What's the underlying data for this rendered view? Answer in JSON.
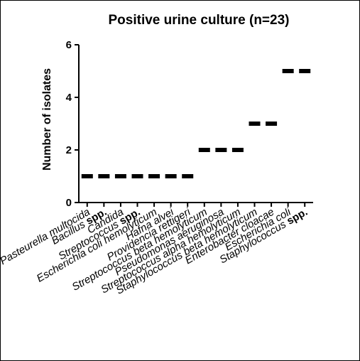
{
  "chart_data": {
    "type": "scatter",
    "title": "Positive urine culture (n=23)",
    "ylabel": "Number of isolates",
    "xlabel": "",
    "ylim": [
      0,
      6
    ],
    "yticks": [
      0,
      2,
      4,
      6
    ],
    "grid": false,
    "legend": "none",
    "categories": [
      {
        "name": "Pasteurella multocida",
        "suffix": ""
      },
      {
        "name": "Bacillus",
        "suffix": "spp."
      },
      {
        "name": "Candida",
        "suffix": ""
      },
      {
        "name": "Streptococcus",
        "suffix": "spp."
      },
      {
        "name": "Escherichia coli hemolyticum",
        "suffix": ""
      },
      {
        "name": "Hafna alvei",
        "suffix": ""
      },
      {
        "name": "Providencia rettigeri",
        "suffix": ""
      },
      {
        "name": "Streptococcus beta hemolyticum",
        "suffix": ""
      },
      {
        "name": "Pseudomonas aeruginosa",
        "suffix": ""
      },
      {
        "name": "Streptococcus alpha hemolyticum",
        "suffix": ""
      },
      {
        "name": "Staphylococcus beta hemolyticum",
        "suffix": ""
      },
      {
        "name": "Enterobacter cloacae",
        "suffix": ""
      },
      {
        "name": "Escherichia coli",
        "suffix": ""
      },
      {
        "name": "Staphylococcus",
        "suffix": "spp."
      }
    ],
    "values": [
      1,
      1,
      1,
      1,
      1,
      1,
      1,
      2,
      2,
      2,
      3,
      3,
      5,
      5
    ],
    "colors": {
      "marker": "#000000",
      "axis": "#000000"
    }
  }
}
